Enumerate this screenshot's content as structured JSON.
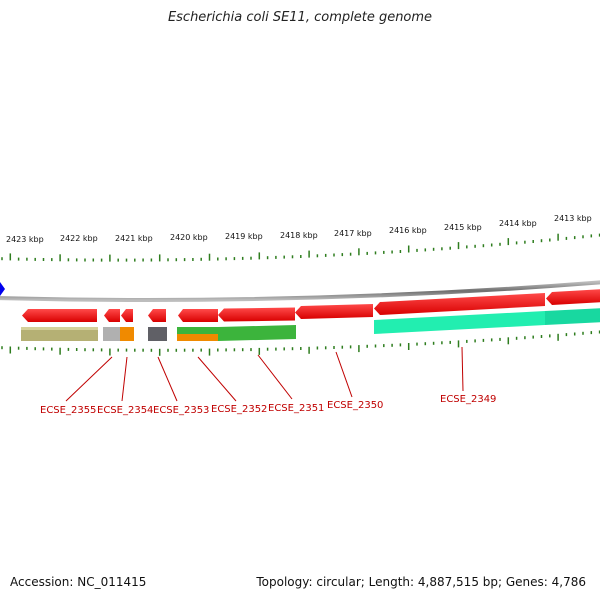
{
  "title": "Escherichia coli SE11, complete genome",
  "accession": "Accession: NC_011415",
  "topology": "Topology: circular; Length: 4,887,515 bp; Genes: 4,786",
  "colors": {
    "backbone": "#7a7a7a",
    "gene_forward_arrow": "#ee0000",
    "ticks": "#2e7d1e",
    "labels": "#c00000",
    "marker": "#0000ee"
  },
  "kbp_labels": [
    "2423 kbp",
    "2422 kbp",
    "2421 kbp",
    "2420 kbp",
    "2419 kbp",
    "2418 kbp",
    "2417 kbp",
    "2416 kbp",
    "2415 kbp",
    "2414 kbp",
    "2413 kbp"
  ],
  "gene_labels": [
    "ECSE_2355",
    "ECSE_2354",
    "ECSE_2353",
    "ECSE_2352",
    "ECSE_2351",
    "ECSE_2350",
    "ECSE_2349"
  ],
  "feature_colors": [
    "#b5b074",
    "#b0b0b0",
    "#f08a00",
    "#606066",
    "#3cb43c",
    "#f08a00",
    "#3cb43c",
    "#22eeb0"
  ]
}
